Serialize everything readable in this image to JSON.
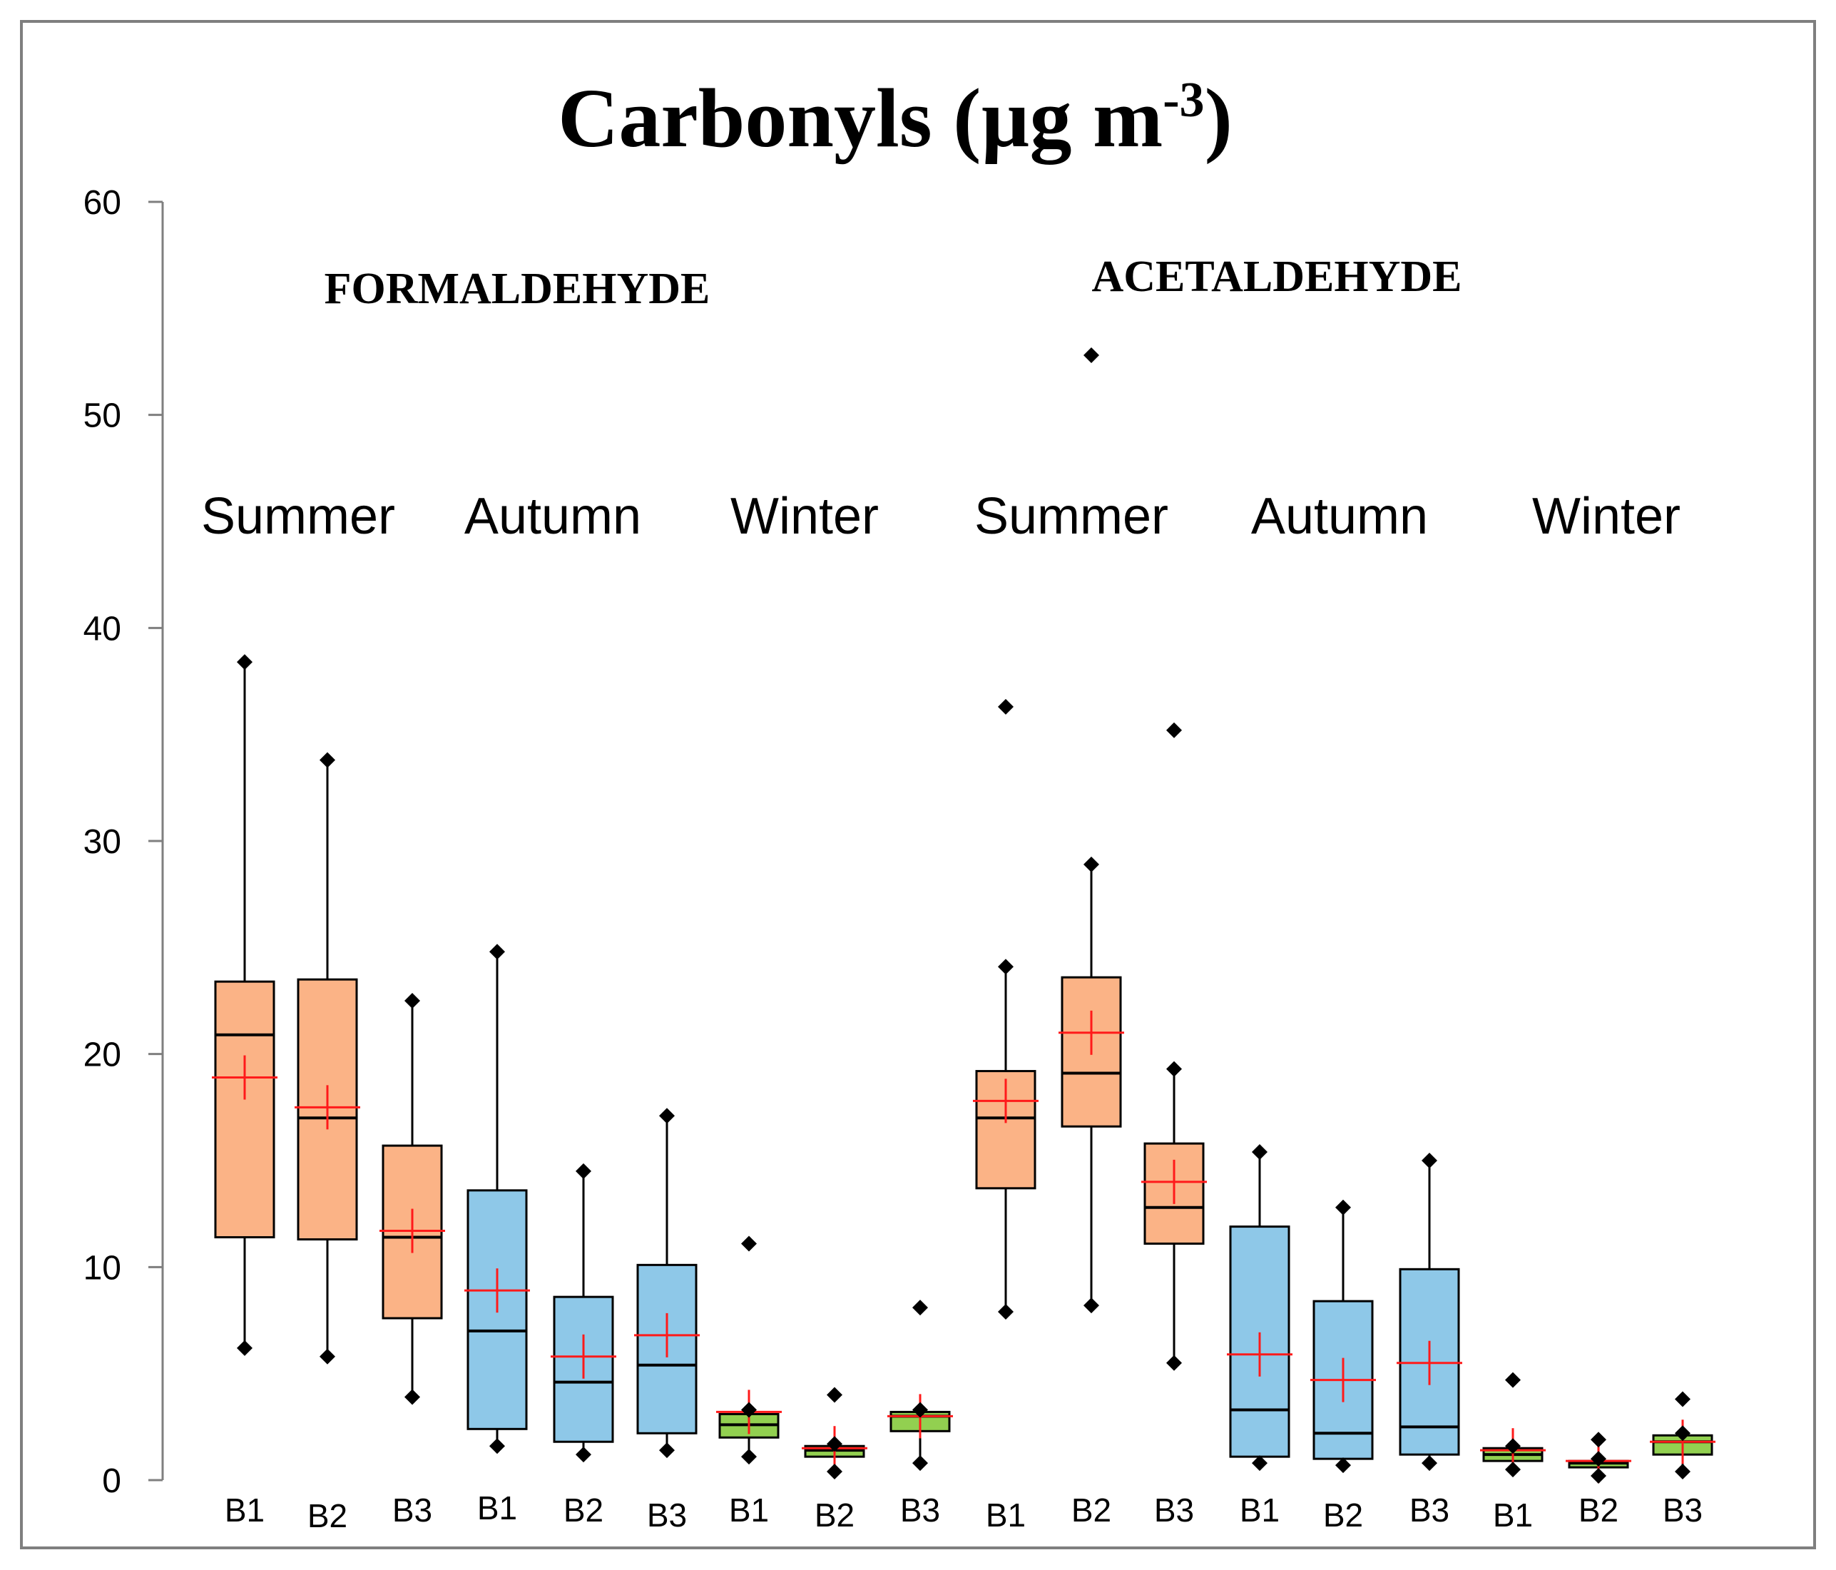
{
  "chart_data": {
    "type": "box",
    "title_main": "Carbonyls (µg m",
    "title_sup": "-3",
    "title_end": ")",
    "ylim": [
      0,
      60
    ],
    "yticks": [
      0,
      10,
      20,
      30,
      40,
      50,
      60
    ],
    "groups": [
      {
        "label": "FORMALDEHYDE",
        "seasons": [
          "Summer",
          "Autumn",
          "Winter"
        ]
      },
      {
        "label": "ACETALDEHYDE",
        "seasons": [
          "Summer",
          "Autumn",
          "Winter"
        ]
      }
    ],
    "season_colors": {
      "Summer": "#fbb386",
      "Autumn": "#8ec8e8",
      "Winter": "#92d050"
    },
    "mean_color": "#ff1a1a",
    "boxes": [
      {
        "label": "B1",
        "group": "FORMALDEHYDE",
        "season": "Summer",
        "min": 6.2,
        "q1": 11.4,
        "median": 20.9,
        "q3": 23.4,
        "max": 38.4,
        "mean": 18.9,
        "outliers": []
      },
      {
        "label": "B2",
        "group": "FORMALDEHYDE",
        "season": "Summer",
        "min": 5.8,
        "q1": 11.3,
        "median": 17.0,
        "q3": 23.5,
        "max": 33.8,
        "mean": 17.5,
        "outliers": []
      },
      {
        "label": "B3",
        "group": "FORMALDEHYDE",
        "season": "Summer",
        "min": 3.9,
        "q1": 7.6,
        "median": 11.4,
        "q3": 15.7,
        "max": 22.5,
        "mean": 11.7,
        "outliers": []
      },
      {
        "label": "B1",
        "group": "FORMALDEHYDE",
        "season": "Autumn",
        "min": 1.6,
        "q1": 2.4,
        "median": 7.0,
        "q3": 13.6,
        "max": 24.8,
        "mean": 8.9,
        "outliers": []
      },
      {
        "label": "B2",
        "group": "FORMALDEHYDE",
        "season": "Autumn",
        "min": 1.2,
        "q1": 1.8,
        "median": 4.6,
        "q3": 8.6,
        "max": 14.5,
        "mean": 5.8,
        "outliers": []
      },
      {
        "label": "B3",
        "group": "FORMALDEHYDE",
        "season": "Autumn",
        "min": 1.4,
        "q1": 2.2,
        "median": 5.4,
        "q3": 10.1,
        "max": 17.1,
        "mean": 6.8,
        "outliers": []
      },
      {
        "label": "B1",
        "group": "FORMALDEHYDE",
        "season": "Winter",
        "min": 1.1,
        "q1": 2.0,
        "median": 2.6,
        "q3": 3.1,
        "max": 3.3,
        "mean": 3.2,
        "outliers": [
          11.1
        ]
      },
      {
        "label": "B2",
        "group": "FORMALDEHYDE",
        "season": "Winter",
        "min": 0.4,
        "q1": 1.1,
        "median": 1.4,
        "q3": 1.6,
        "max": 1.7,
        "mean": 1.5,
        "outliers": [
          4.0
        ]
      },
      {
        "label": "B3",
        "group": "FORMALDEHYDE",
        "season": "Winter",
        "min": 0.8,
        "q1": 2.3,
        "median": 3.0,
        "q3": 3.2,
        "max": 3.3,
        "mean": 3.0,
        "outliers": [
          8.1
        ]
      },
      {
        "label": "B1",
        "group": "ACETALDEHYDE",
        "season": "Summer",
        "min": 7.9,
        "q1": 13.7,
        "median": 17.0,
        "q3": 19.2,
        "max": 24.1,
        "mean": 17.8,
        "outliers": [
          36.3
        ]
      },
      {
        "label": "B2",
        "group": "ACETALDEHYDE",
        "season": "Summer",
        "min": 8.2,
        "q1": 16.6,
        "median": 19.1,
        "q3": 23.6,
        "max": 28.9,
        "mean": 21.0,
        "outliers": [
          52.8
        ]
      },
      {
        "label": "B3",
        "group": "ACETALDEHYDE",
        "season": "Summer",
        "min": 5.5,
        "q1": 11.1,
        "median": 12.8,
        "q3": 15.8,
        "max": 19.3,
        "mean": 14.0,
        "outliers": [
          35.2
        ]
      },
      {
        "label": "B1",
        "group": "ACETALDEHYDE",
        "season": "Autumn",
        "min": 0.8,
        "q1": 1.1,
        "median": 3.3,
        "q3": 11.9,
        "max": 15.4,
        "mean": 5.9,
        "outliers": []
      },
      {
        "label": "B2",
        "group": "ACETALDEHYDE",
        "season": "Autumn",
        "min": 0.7,
        "q1": 1.0,
        "median": 2.2,
        "q3": 8.4,
        "max": 12.8,
        "mean": 4.7,
        "outliers": []
      },
      {
        "label": "B3",
        "group": "ACETALDEHYDE",
        "season": "Autumn",
        "min": 0.8,
        "q1": 1.2,
        "median": 2.5,
        "q3": 9.9,
        "max": 15.0,
        "mean": 5.5,
        "outliers": []
      },
      {
        "label": "B1",
        "group": "ACETALDEHYDE",
        "season": "Winter",
        "min": 0.5,
        "q1": 0.9,
        "median": 1.2,
        "q3": 1.5,
        "max": 1.6,
        "mean": 1.4,
        "outliers": [
          4.7
        ]
      },
      {
        "label": "B2",
        "group": "ACETALDEHYDE",
        "season": "Winter",
        "min": 0.2,
        "q1": 0.6,
        "median": 0.8,
        "q3": 0.9,
        "max": 1.0,
        "mean": 0.9,
        "outliers": [
          1.9
        ]
      },
      {
        "label": "B3",
        "group": "ACETALDEHYDE",
        "season": "Winter",
        "min": 0.4,
        "q1": 1.2,
        "median": 1.8,
        "q3": 2.1,
        "max": 2.2,
        "mean": 1.8,
        "outliers": [
          3.8
        ]
      }
    ]
  }
}
